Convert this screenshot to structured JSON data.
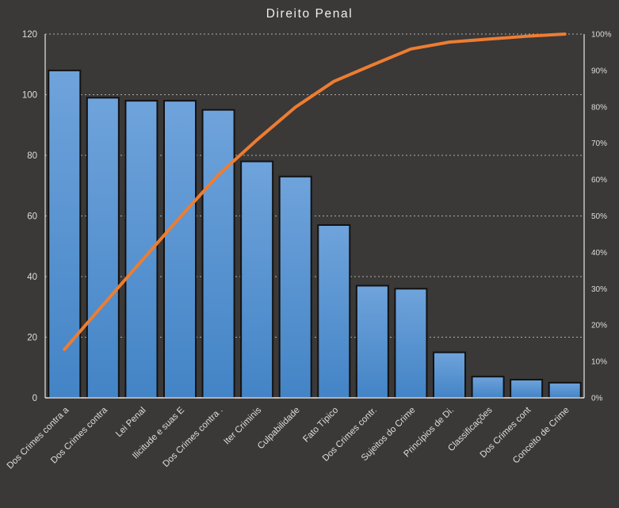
{
  "chart_data": {
    "type": "pareto",
    "title": "Direito Penal",
    "categories": [
      "Dos Crimes contra a",
      "Dos Crimes contra",
      "Lei Penal",
      "Ilicitude e suas E",
      "Dos Crimes contra .",
      "Iter Criminis",
      "Culpabilidade",
      "Fato Típico",
      "Dos Crimes contr.",
      "Sujeitos do Crime",
      "Princípios de Di.",
      "Classificações",
      "Dos Crimes cont",
      "Conceito de Crime"
    ],
    "series": [
      {
        "name": "bar-frequency",
        "type": "bar",
        "axis": "left",
        "values": [
          108,
          99,
          98,
          98,
          95,
          78,
          73,
          57,
          37,
          36,
          15,
          7,
          6,
          5
        ]
      },
      {
        "name": "line-cumulative-percent",
        "type": "line",
        "axis": "right",
        "values": [
          13.3,
          25.5,
          37.6,
          49.6,
          61.3,
          70.9,
          79.9,
          87.0,
          91.5,
          95.9,
          97.8,
          98.6,
          99.4,
          100.0
        ]
      }
    ],
    "left_axis": {
      "min": 0,
      "max": 120,
      "step": 20,
      "ticks": [
        "0",
        "20",
        "40",
        "60",
        "80",
        "100",
        "120"
      ]
    },
    "right_axis": {
      "min": 0,
      "max": 100,
      "step": 10,
      "ticks": [
        "0%",
        "10%",
        "20%",
        "30%",
        "40%",
        "50%",
        "60%",
        "70%",
        "80%",
        "90%",
        "100%"
      ]
    },
    "grid": "dashed-horizontal-every-20-left-units",
    "legend_position": "none",
    "colors": {
      "background": "#3B3838",
      "bar_top": "#6FA3DB",
      "bar_bottom": "#4384C6",
      "bar_border": "#121212",
      "line": "#ED7D31",
      "grid": "#C9C7C7",
      "axis": "#E8E6E6",
      "tick_text": "#DEDCDC",
      "title_text": "#F0EEEE"
    }
  }
}
